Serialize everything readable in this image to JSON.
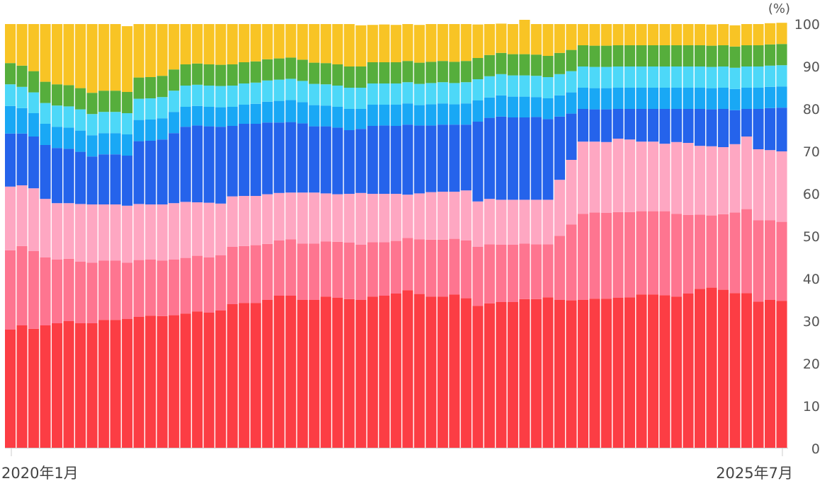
{
  "chart_data": {
    "type": "bar",
    "stacked": true,
    "normalized_to": 100,
    "unit": "(%)",
    "x_start": "2020年1月",
    "x_end": "2025年7月",
    "x_tick_labels": [
      "2020年1月",
      "2025年7月"
    ],
    "ylim": [
      0,
      100
    ],
    "y_ticks": [
      0,
      10,
      20,
      30,
      40,
      50,
      60,
      70,
      80,
      90,
      100
    ],
    "y_axis_side": "right",
    "grid": false,
    "legend": "none",
    "periods": 67,
    "series": [
      {
        "color": "#fc3d44",
        "values": [
          28,
          29,
          28.2,
          29,
          29.5,
          30,
          29.5,
          29.5,
          30.3,
          30.3,
          30.5,
          31,
          31.3,
          31.2,
          31.4,
          31.8,
          32.3,
          32,
          32.5,
          34,
          34.3,
          34.3,
          35,
          36,
          36,
          35,
          35,
          35.8,
          35.5,
          35.2,
          35,
          35.8,
          36,
          36.5,
          37.3,
          36.4,
          35.8,
          35.8,
          36.3,
          35.4,
          33.6,
          34.2,
          34.5,
          34.5,
          35.2,
          35.2,
          35.6,
          35,
          34.9,
          35,
          35.3,
          35.3,
          35.5,
          35.6,
          36.3,
          36.3,
          36.1,
          35.8,
          36.5,
          37.6,
          37.9,
          37.4,
          36.6,
          36.6,
          34.6,
          35,
          34.8
        ]
      },
      {
        "color": "#fe7590",
        "values": [
          18.7,
          18.7,
          18.3,
          16,
          15,
          14.7,
          14.5,
          14.3,
          14,
          14,
          13.3,
          13.4,
          13.2,
          13.1,
          13.1,
          13.1,
          13.1,
          13,
          13,
          13.5,
          13.4,
          13.6,
          13.2,
          13,
          13.3,
          13.3,
          13.3,
          13,
          13.2,
          13.3,
          13,
          12.8,
          12.6,
          12.4,
          12.3,
          12.9,
          13.4,
          13.4,
          13.1,
          13.6,
          13.9,
          13.9,
          13.5,
          13.5,
          13.1,
          12.9,
          12.5,
          15.1,
          17.9,
          20.3,
          20.3,
          20.2,
          20.2,
          20.1,
          19.6,
          19.6,
          19.8,
          19.5,
          18.5,
          17.5,
          17,
          17.8,
          19,
          19.8,
          19.2,
          18.8,
          18.6
        ]
      },
      {
        "color": "#fea7c2",
        "values": [
          15,
          14.3,
          14.8,
          13.8,
          13.3,
          13.1,
          13.6,
          13.7,
          13.2,
          13.2,
          13.4,
          13.2,
          13,
          13.2,
          13.3,
          13.2,
          12.6,
          12.9,
          12.2,
          11.9,
          11.8,
          11.6,
          11.7,
          11.2,
          11,
          12,
          12,
          11.3,
          11.2,
          11.5,
          12.2,
          11.4,
          11.4,
          11.1,
          10.2,
          10.8,
          11.2,
          11.3,
          11.1,
          11.8,
          10.7,
          10.7,
          10.6,
          10.6,
          10.3,
          10.5,
          10.5,
          13.2,
          15.2,
          17,
          16.7,
          16.7,
          17.3,
          17.1,
          16.4,
          16.4,
          15.9,
          16.9,
          17,
          16.2,
          16.3,
          15.8,
          16.1,
          17.1,
          16.7,
          16.5,
          16.6
        ]
      },
      {
        "color": "#2563eb",
        "values": [
          12.5,
          12.2,
          12.2,
          12.7,
          13,
          12.8,
          12.3,
          11.3,
          11.8,
          11.8,
          11.8,
          14.8,
          15,
          15.3,
          16.5,
          17.7,
          18.1,
          18,
          18.1,
          16.6,
          17,
          17,
          16.9,
          16.6,
          16.6,
          16.3,
          15.6,
          15.8,
          15.7,
          15,
          15.1,
          16,
          16.1,
          16,
          16.5,
          16,
          15.7,
          15.8,
          15.8,
          15.5,
          18.8,
          19.1,
          19.6,
          19.4,
          19.4,
          19.5,
          19,
          14.9,
          10.9,
          7.7,
          7.6,
          7.7,
          7,
          7.2,
          7.7,
          7.7,
          8.2,
          7.8,
          8,
          8.7,
          8.7,
          9,
          8,
          6.5,
          9.5,
          9.9,
          10.3
        ]
      },
      {
        "color": "#19a8f5",
        "values": [
          6.5,
          6,
          5.5,
          5,
          5,
          5,
          5,
          5,
          5,
          5,
          5,
          5,
          5,
          5,
          5,
          4.7,
          4.6,
          4.6,
          4.6,
          4.5,
          4.5,
          4.7,
          4.9,
          5.1,
          5.2,
          5,
          5,
          4.9,
          4.9,
          5,
          4.7,
          5,
          4.9,
          5,
          5,
          4.8,
          5,
          5,
          4.8,
          5,
          5,
          4.8,
          5,
          4.9,
          4.9,
          4.7,
          4.9,
          5,
          5,
          5,
          5,
          5,
          5,
          5,
          5,
          5,
          5,
          5,
          5,
          5,
          5,
          5,
          5,
          5,
          5,
          5,
          5
        ]
      },
      {
        "color": "#4dd8f8",
        "values": [
          5.1,
          5,
          4.9,
          4.9,
          5,
          5,
          5,
          5,
          5,
          5,
          5,
          5,
          5,
          5,
          5,
          5,
          5,
          5,
          5,
          5,
          5,
          5,
          5,
          5,
          5,
          5,
          5,
          5,
          5,
          5,
          5,
          5,
          5,
          5,
          5,
          5,
          5,
          5,
          5,
          5,
          5,
          5,
          5,
          5,
          5,
          5,
          5,
          5,
          5,
          5,
          5,
          5,
          5,
          5,
          5,
          5,
          5,
          5,
          5,
          5,
          5,
          5,
          5,
          5,
          5,
          5,
          5
        ]
      },
      {
        "color": "#56ae3c",
        "values": [
          5,
          5,
          5,
          5,
          5,
          5,
          5,
          5,
          5,
          5,
          5,
          5,
          5,
          5,
          5,
          5,
          5,
          5,
          5,
          5,
          5,
          5,
          5,
          5,
          5,
          5,
          5,
          5,
          5,
          5,
          5,
          5,
          5,
          5,
          5,
          5,
          5,
          5,
          5,
          5,
          5,
          5,
          5,
          5,
          5,
          5,
          5,
          5,
          5,
          5,
          5,
          5,
          5,
          5,
          5,
          5,
          5,
          5,
          5,
          5,
          5,
          5,
          5,
          5,
          5,
          5,
          5
        ]
      },
      {
        "color": "#f8c425",
        "values": [
          9.2,
          9.8,
          11.1,
          13.6,
          14.2,
          14.4,
          15.1,
          16.2,
          15.7,
          15.7,
          15.5,
          12.6,
          12.5,
          12.2,
          10.7,
          9.5,
          9.3,
          9.5,
          9.6,
          9.5,
          9,
          8.8,
          8.3,
          8.1,
          7.9,
          8.4,
          9.1,
          9.2,
          9.5,
          10,
          9.7,
          8.8,
          8.9,
          8.8,
          8.7,
          8.9,
          8.9,
          8.7,
          8.9,
          8.7,
          7.9,
          7.3,
          6.9,
          7.1,
          8.1,
          7.2,
          7.5,
          6.8,
          6.1,
          5,
          5.1,
          5.1,
          5,
          5,
          5,
          5,
          5,
          5,
          5,
          5,
          5,
          5,
          5,
          5,
          5,
          5,
          5
        ]
      }
    ]
  }
}
